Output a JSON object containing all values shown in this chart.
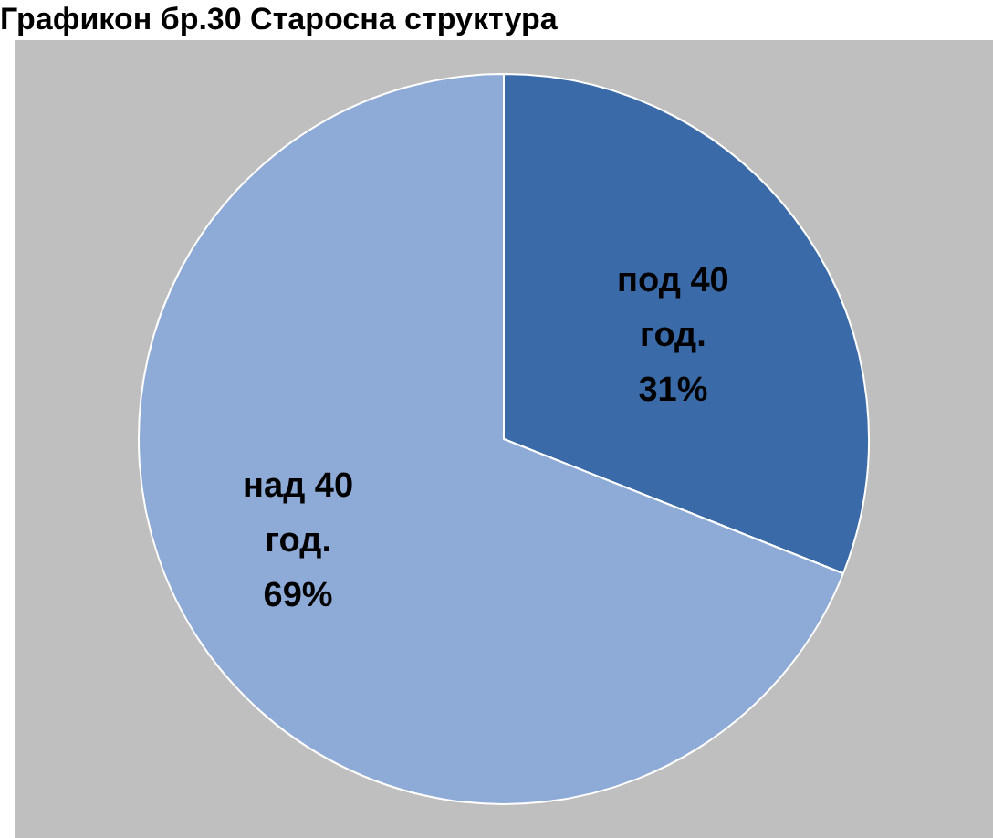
{
  "chart_data": {
    "type": "pie",
    "title": "Графикон бр.30 Старосна структура",
    "categories": [
      "под 40 год.",
      "над 40 год."
    ],
    "values": [
      31,
      69
    ],
    "value_labels": [
      "31%",
      "69%"
    ],
    "colors": [
      "#3a6aa8",
      "#8eaad6"
    ],
    "legend": false
  }
}
